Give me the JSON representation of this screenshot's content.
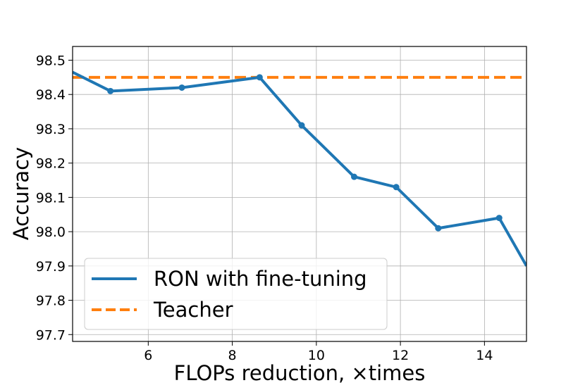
{
  "chart_data": {
    "type": "line",
    "title": "",
    "xlabel": "FLOPs reduction, ×times",
    "ylabel": "Accuracy",
    "xlim": [
      4.2,
      15.0
    ],
    "ylim": [
      97.68,
      98.54
    ],
    "xticks": [
      6,
      8,
      10,
      12,
      14
    ],
    "yticks": [
      97.7,
      97.8,
      97.9,
      98.0,
      98.1,
      98.2,
      98.3,
      98.4,
      98.5
    ],
    "grid": true,
    "legend_position": "lower-left",
    "series": [
      {
        "name": "RON with fine-tuning",
        "color": "#1f77b4",
        "style": "solid-with-markers",
        "x": [
          4.2,
          5.1,
          6.8,
          8.65,
          9.65,
          10.9,
          11.9,
          12.9,
          14.35,
          15.0
        ],
        "y": [
          98.465,
          98.41,
          98.42,
          98.45,
          98.31,
          98.16,
          98.13,
          98.01,
          98.04,
          97.9
        ],
        "markers": [
          false,
          true,
          true,
          true,
          true,
          true,
          true,
          true,
          true,
          false
        ]
      },
      {
        "name": "Teacher",
        "color": "#ff7f0e",
        "style": "dashed",
        "x": [
          4.2,
          15.0
        ],
        "y": [
          98.45,
          98.45
        ]
      }
    ]
  },
  "colors": {
    "grid": "#b0b0b0",
    "axes": "#000000"
  }
}
